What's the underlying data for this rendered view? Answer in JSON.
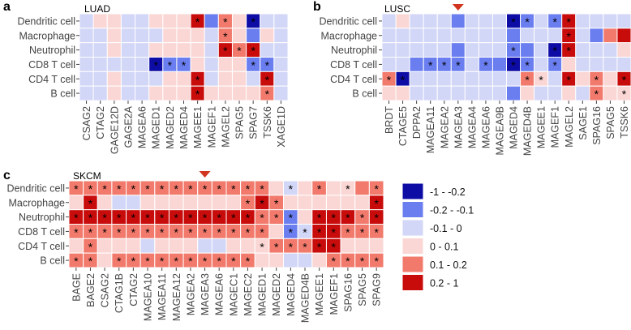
{
  "colors": {
    "c1": "#0d0da6",
    "c2": "#6a7ef0",
    "c3": "#d2d6f7",
    "c4": "#fad7d5",
    "c5": "#f27a6c",
    "c6": "#c80b0b",
    "grid": "#ffffff",
    "text": "#222222",
    "marker": "#d1341f"
  },
  "legend": {
    "items": [
      {
        "label": "-1 - -0.2",
        "color": "#0d0da6"
      },
      {
        "label": "-0.2 - -0.1",
        "color": "#6a7ef0"
      },
      {
        "label": "-0.1 - 0",
        "color": "#d2d6f7"
      },
      {
        "label": "0 - 0.1",
        "color": "#fad7d5"
      },
      {
        "label": "0.1 - 0.2",
        "color": "#f27a6c"
      },
      {
        "label": "0.2 - 1",
        "color": "#c80b0b"
      }
    ]
  },
  "chart_data": [
    {
      "type": "heatmap",
      "panel_letter": "a",
      "title": "LUAD",
      "rows": [
        "Dendritic cell",
        "Macrophage",
        "Neutrophil",
        "CD8 T cell",
        "CD4 T cell",
        "B cell"
      ],
      "columns": [
        "CSAG2",
        "CTAG2",
        "GAGE12D",
        "GAGE2A",
        "MAGEA6",
        "MAGED1",
        "MAGED2",
        "MAGED4",
        "MAGEE1",
        "MAGEF1",
        "MAGEL2",
        "SPAG5",
        "SPAG7",
        "TSSK6",
        "XAGE1D"
      ],
      "values": [
        [
          3,
          4,
          4,
          3,
          3,
          4,
          4,
          4,
          6,
          2,
          5,
          4,
          1,
          3,
          3
        ],
        [
          3,
          3,
          4,
          3,
          3,
          3,
          4,
          4,
          4,
          3,
          5,
          4,
          2,
          4,
          3
        ],
        [
          3,
          3,
          4,
          3,
          3,
          4,
          4,
          4,
          4,
          3,
          6,
          5,
          6,
          3,
          3
        ],
        [
          3,
          3,
          3,
          3,
          3,
          1,
          2,
          2,
          4,
          3,
          4,
          4,
          2,
          2,
          3
        ],
        [
          3,
          3,
          4,
          3,
          3,
          3,
          4,
          4,
          6,
          3,
          4,
          4,
          3,
          6,
          3
        ],
        [
          3,
          3,
          4,
          3,
          3,
          4,
          4,
          4,
          6,
          4,
          4,
          4,
          4,
          5,
          3
        ]
      ],
      "significant": [
        [
          0,
          0,
          0,
          0,
          0,
          0,
          0,
          0,
          1,
          0,
          1,
          0,
          1,
          0,
          0
        ],
        [
          0,
          0,
          0,
          0,
          0,
          0,
          0,
          0,
          0,
          0,
          1,
          0,
          0,
          0,
          0
        ],
        [
          0,
          0,
          0,
          0,
          0,
          0,
          0,
          0,
          0,
          0,
          1,
          1,
          1,
          0,
          0
        ],
        [
          0,
          0,
          0,
          0,
          0,
          1,
          1,
          1,
          0,
          0,
          0,
          0,
          1,
          1,
          0
        ],
        [
          0,
          0,
          0,
          0,
          0,
          0,
          0,
          0,
          1,
          0,
          0,
          0,
          0,
          1,
          0
        ],
        [
          0,
          0,
          0,
          0,
          0,
          0,
          0,
          0,
          1,
          0,
          0,
          0,
          0,
          1,
          0
        ]
      ],
      "marked_column": null
    },
    {
      "type": "heatmap",
      "panel_letter": "b",
      "title": "LUSC",
      "rows": [
        "Dendritic cell",
        "Macrophage",
        "Neutrophil",
        "CD8 T cell",
        "CD4 T cell",
        "B cell"
      ],
      "columns": [
        "BRDT",
        "CTAGE5",
        "DPPA2",
        "MAGEA11",
        "MAGEA2",
        "MAGEA3",
        "MAGEA4",
        "MAGEA6",
        "MAGEA9B",
        "MAGED4",
        "MAGED4B",
        "MAGEE1",
        "MAGEF1",
        "MAGEL2",
        "SAGE1",
        "SPAG16",
        "SPAG5",
        "TSSK6"
      ],
      "values": [
        [
          3,
          4,
          3,
          3,
          3,
          2,
          3,
          3,
          3,
          1,
          2,
          3,
          2,
          6,
          3,
          3,
          3,
          3
        ],
        [
          3,
          3,
          3,
          3,
          3,
          3,
          3,
          3,
          3,
          2,
          3,
          3,
          3,
          6,
          3,
          2,
          5,
          6
        ],
        [
          3,
          3,
          3,
          3,
          3,
          2,
          3,
          3,
          3,
          2,
          2,
          3,
          1,
          6,
          3,
          3,
          3,
          4
        ],
        [
          3,
          3,
          2,
          2,
          2,
          2,
          3,
          2,
          2,
          1,
          2,
          3,
          2,
          4,
          3,
          3,
          3,
          3
        ],
        [
          5,
          1,
          3,
          3,
          3,
          3,
          3,
          3,
          3,
          3,
          5,
          4,
          3,
          6,
          4,
          5,
          4,
          6
        ],
        [
          4,
          4,
          3,
          3,
          3,
          3,
          3,
          3,
          3,
          2,
          4,
          3,
          3,
          4,
          3,
          5,
          4,
          4
        ]
      ],
      "significant": [
        [
          0,
          0,
          0,
          0,
          0,
          0,
          0,
          0,
          0,
          1,
          1,
          0,
          1,
          1,
          0,
          0,
          0,
          0
        ],
        [
          0,
          0,
          0,
          0,
          0,
          0,
          0,
          0,
          0,
          0,
          0,
          0,
          0,
          1,
          0,
          0,
          0,
          0
        ],
        [
          0,
          0,
          0,
          0,
          0,
          0,
          0,
          0,
          0,
          1,
          0,
          0,
          1,
          1,
          0,
          0,
          0,
          0
        ],
        [
          0,
          0,
          0,
          1,
          1,
          1,
          0,
          1,
          0,
          1,
          1,
          0,
          1,
          0,
          0,
          0,
          0,
          0
        ],
        [
          1,
          1,
          0,
          0,
          0,
          0,
          0,
          0,
          0,
          0,
          1,
          1,
          0,
          1,
          0,
          1,
          0,
          1
        ],
        [
          0,
          0,
          0,
          0,
          0,
          0,
          0,
          0,
          0,
          0,
          0,
          0,
          0,
          0,
          0,
          1,
          0,
          1
        ]
      ],
      "marked_column": "MAGEA3"
    },
    {
      "type": "heatmap",
      "panel_letter": "c",
      "title": "SKCM",
      "rows": [
        "Dendritic cell",
        "Macrophage",
        "Neutrophil",
        "CD8 T cell",
        "CD4 T cell",
        "B cell"
      ],
      "columns": [
        "BAGE",
        "BAGE2",
        "CSAG2",
        "CTAG1B",
        "CTAG2",
        "MAGEA10",
        "MAGEA11",
        "MAGEA12",
        "MAGEA2",
        "MAGEA3",
        "MAGEA6",
        "MAGEC1",
        "MAGEC2",
        "MAGED1",
        "MAGED2",
        "MAGED4",
        "MAGED4B",
        "MAGEE1",
        "MAGEF1",
        "SPAG16",
        "SPAG5",
        "SPAG9"
      ],
      "values": [
        [
          5,
          5,
          5,
          5,
          5,
          5,
          5,
          5,
          5,
          5,
          5,
          5,
          5,
          5,
          4,
          3,
          4,
          5,
          4,
          4,
          5,
          5
        ],
        [
          4,
          6,
          4,
          3,
          3,
          4,
          4,
          4,
          4,
          4,
          4,
          4,
          5,
          6,
          5,
          4,
          4,
          4,
          4,
          4,
          4,
          6
        ],
        [
          6,
          6,
          6,
          6,
          6,
          6,
          6,
          6,
          6,
          6,
          6,
          6,
          6,
          5,
          5,
          2,
          4,
          6,
          6,
          6,
          5,
          6
        ],
        [
          5,
          5,
          5,
          5,
          5,
          5,
          5,
          5,
          5,
          5,
          5,
          5,
          5,
          5,
          4,
          2,
          3,
          6,
          6,
          5,
          5,
          5
        ],
        [
          4,
          5,
          4,
          4,
          4,
          3,
          4,
          4,
          4,
          3,
          3,
          4,
          4,
          4,
          5,
          5,
          5,
          6,
          6,
          4,
          4,
          4
        ],
        [
          5,
          5,
          4,
          5,
          5,
          5,
          5,
          5,
          5,
          5,
          5,
          5,
          5,
          4,
          4,
          3,
          3,
          4,
          5,
          5,
          5,
          5
        ]
      ],
      "significant": [
        [
          1,
          1,
          1,
          1,
          1,
          1,
          1,
          1,
          1,
          1,
          1,
          1,
          1,
          1,
          0,
          1,
          0,
          1,
          0,
          1,
          0,
          1
        ],
        [
          0,
          1,
          0,
          0,
          0,
          0,
          0,
          0,
          0,
          0,
          0,
          0,
          1,
          1,
          1,
          0,
          0,
          0,
          0,
          0,
          0,
          1
        ],
        [
          1,
          1,
          1,
          1,
          1,
          1,
          1,
          1,
          1,
          1,
          1,
          1,
          1,
          1,
          1,
          1,
          0,
          1,
          1,
          1,
          1,
          1
        ],
        [
          1,
          1,
          1,
          1,
          1,
          1,
          1,
          1,
          1,
          1,
          1,
          1,
          1,
          1,
          0,
          1,
          1,
          1,
          1,
          1,
          1,
          1
        ],
        [
          0,
          1,
          0,
          0,
          0,
          0,
          0,
          0,
          0,
          0,
          0,
          0,
          0,
          1,
          1,
          1,
          1,
          1,
          1,
          0,
          0,
          0
        ],
        [
          1,
          1,
          0,
          1,
          1,
          1,
          1,
          1,
          1,
          1,
          1,
          1,
          1,
          0,
          0,
          0,
          0,
          0,
          1,
          1,
          1,
          1
        ]
      ],
      "marked_column": "MAGEA3"
    }
  ]
}
